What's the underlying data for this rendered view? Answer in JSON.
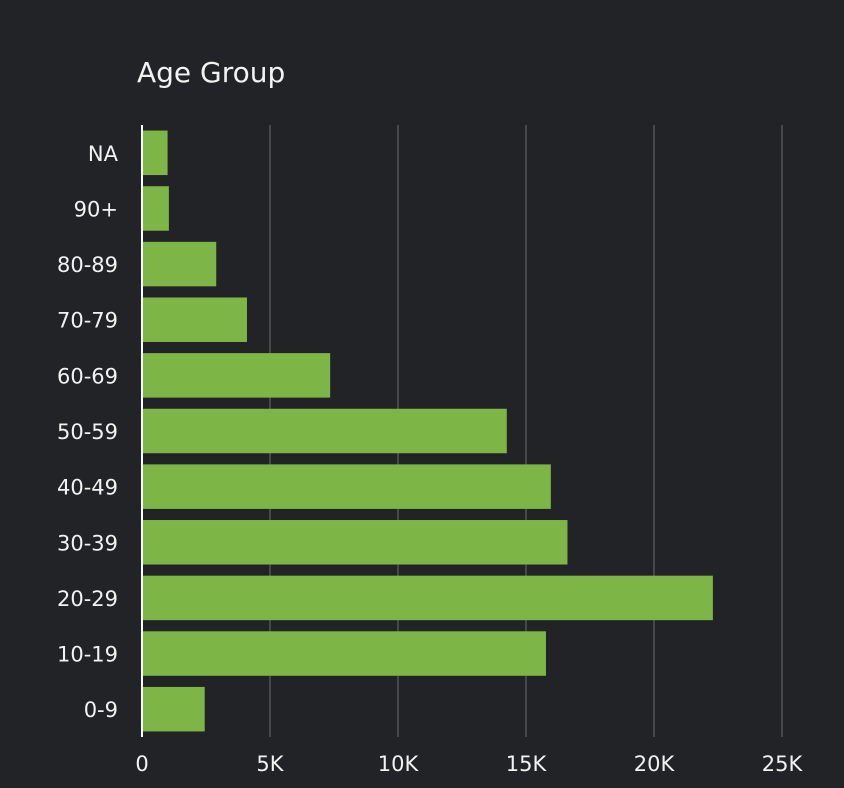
{
  "chart_data": {
    "type": "bar",
    "orientation": "horizontal",
    "title": "Age Group",
    "xlabel": "",
    "ylabel": "",
    "categories": [
      "NA",
      "90+",
      "80-89",
      "70-79",
      "60-69",
      "50-59",
      "40-49",
      "30-39",
      "20-29",
      "10-19",
      "0-9"
    ],
    "values": [
      1000,
      1050,
      2900,
      4100,
      7350,
      14250,
      15970,
      16620,
      22300,
      15780,
      2450
    ],
    "xlim": [
      0,
      25000
    ],
    "x_ticks": [
      0,
      5000,
      10000,
      15000,
      20000,
      25000
    ],
    "x_tick_labels": [
      "0",
      "5K",
      "10K",
      "15K",
      "20K",
      "25K"
    ],
    "grid": "vertical",
    "legend": "none",
    "bar_color": "#7db546",
    "background_color": "#222326",
    "grid_color": "#45474b",
    "text_color": "#f2f2f2"
  }
}
